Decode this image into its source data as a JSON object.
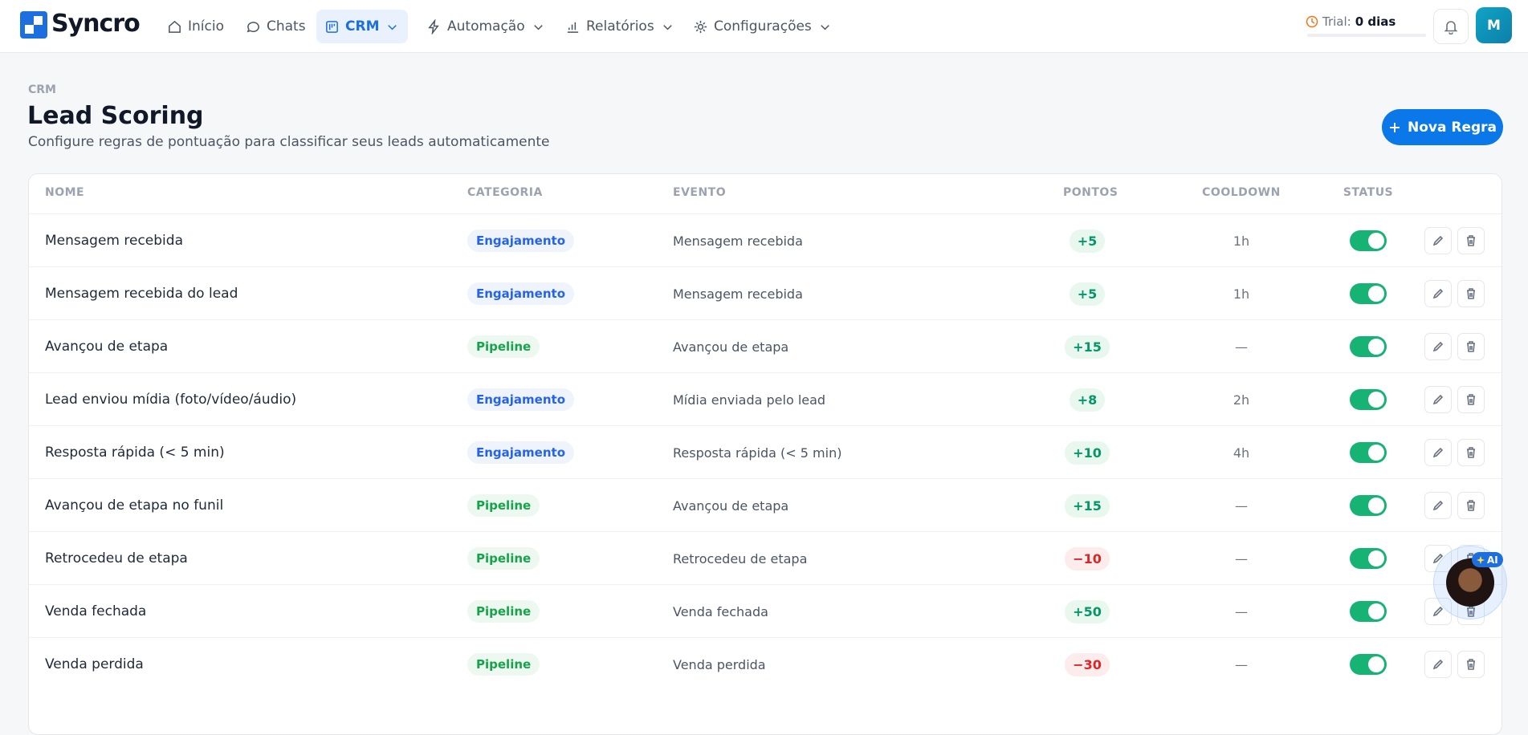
{
  "nav": {
    "logo": "Syncro",
    "items": [
      "Início",
      "Chats",
      "CRM",
      "Automação",
      "Relatórios",
      "Configurações"
    ],
    "active": 2,
    "trial_label": "Trial:",
    "trial_value": "0 dias",
    "avatar": "M"
  },
  "header": {
    "breadcrumb": "CRM",
    "title": "Lead Scoring",
    "subtitle": "Configure regras de pontuação para classificar seus leads automaticamente",
    "button": "Nova Regra"
  },
  "table": {
    "columns": [
      "NOME",
      "CATEGORIA",
      "EVENTO",
      "PONTOS",
      "COOLDOWN",
      "STATUS"
    ],
    "rows": [
      [
        "Mensagem recebida",
        "Engajamento",
        "Mensagem recebida",
        "+5",
        "1h"
      ],
      [
        "Mensagem recebida do lead",
        "Engajamento",
        "Mensagem recebida",
        "+5",
        "1h"
      ],
      [
        "Avançou de etapa",
        "Pipeline",
        "Avançou de etapa",
        "+15",
        "—"
      ],
      [
        "Lead enviou mídia (foto/vídeo/áudio)",
        "Engajamento",
        "Mídia enviada pelo lead",
        "+8",
        "2h"
      ],
      [
        "Resposta rápida (< 5 min)",
        "Engajamento",
        "Resposta rápida (< 5 min)",
        "+10",
        "4h"
      ],
      [
        "Avançou de etapa no funil",
        "Pipeline",
        "Avançou de etapa",
        "+15",
        "—"
      ],
      [
        "Retrocedeu de etapa",
        "Pipeline",
        "Retrocedeu de etapa",
        "−10",
        "—"
      ],
      [
        "Venda fechada",
        "Pipeline",
        "Venda fechada",
        "+50",
        "—"
      ],
      [
        "Venda perdida",
        "Pipeline",
        "Venda perdida",
        "−30",
        "—"
      ]
    ],
    "active": [
      true,
      true,
      true,
      true,
      true,
      true,
      true,
      true,
      true
    ]
  },
  "assistant": {
    "badge": "AI"
  }
}
